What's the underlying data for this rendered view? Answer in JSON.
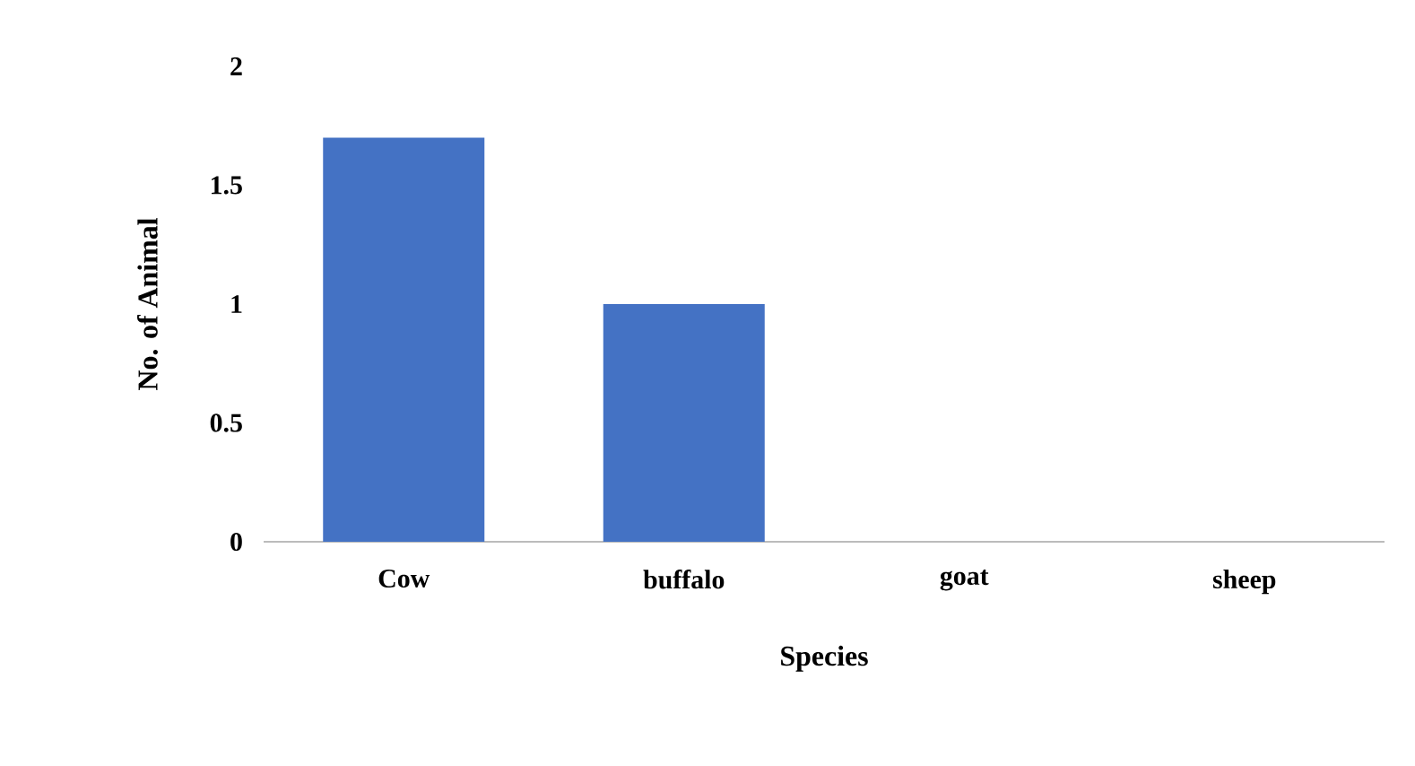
{
  "chart_data": {
    "type": "bar",
    "xlabel": "Species",
    "ylabel": "No. of Animal",
    "categories": [
      "Cow",
      "buffalo",
      "goat",
      "sheep"
    ],
    "values": [
      1.7,
      1,
      0,
      0
    ],
    "color": "#4472c4",
    "ylim": [
      0,
      2
    ],
    "yticks": [
      0,
      0.5,
      1,
      1.5,
      2
    ]
  }
}
